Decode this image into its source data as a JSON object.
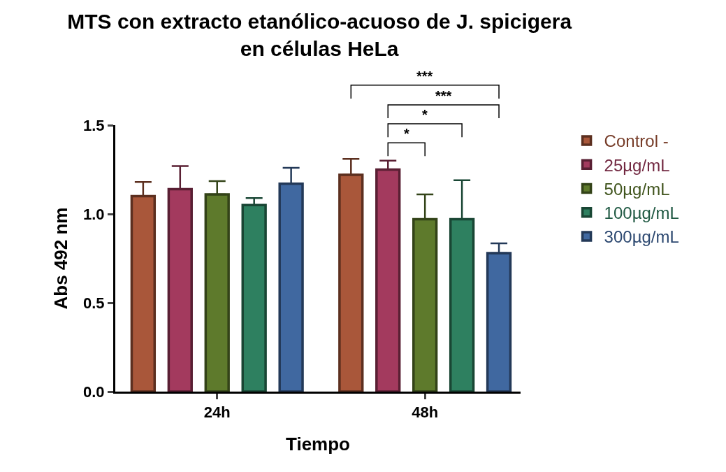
{
  "chart_data": {
    "type": "bar",
    "title": "MTS con extracto etanólico-acuoso de J. spicigera\nen células HeLa",
    "xlabel": "Tiempo",
    "ylabel": "Abs 492 nm",
    "categories": [
      "24h",
      "48h"
    ],
    "series": [
      {
        "name": "Control -",
        "color": "#a9573a",
        "values": [
          1.1,
          1.22
        ],
        "errors": [
          [
            1.1,
            1.18
          ],
          [
            1.22,
            1.31
          ]
        ]
      },
      {
        "name": "25µg/mL",
        "color": "#a33a5e",
        "values": [
          1.14,
          1.25
        ],
        "errors": [
          [
            1.14,
            1.27
          ],
          [
            1.25,
            1.3
          ]
        ]
      },
      {
        "name": "50µg/mL",
        "color": "#5e7a2c",
        "values": [
          1.11,
          0.97
        ],
        "errors": [
          [
            1.11,
            1.185
          ],
          [
            0.97,
            1.11
          ]
        ]
      },
      {
        "name": "100µg/mL",
        "color": "#2e8060",
        "values": [
          1.05,
          0.97
        ],
        "errors": [
          [
            1.05,
            1.09
          ],
          [
            0.97,
            1.19
          ]
        ]
      },
      {
        "name": "300µg/mL",
        "color": "#4068a0",
        "values": [
          1.17,
          0.78
        ],
        "errors": [
          [
            1.17,
            1.26
          ],
          [
            0.78,
            0.835
          ]
        ]
      }
    ],
    "ylim": [
      0,
      1.5
    ],
    "yticks": [
      {
        "value": 0,
        "label": "0.0"
      },
      0.5,
      {
        "value": 1,
        "label": "1.0"
      },
      1.5
    ],
    "annotations": [
      "***",
      "***",
      "*",
      "*"
    ],
    "legend": "top right"
  }
}
